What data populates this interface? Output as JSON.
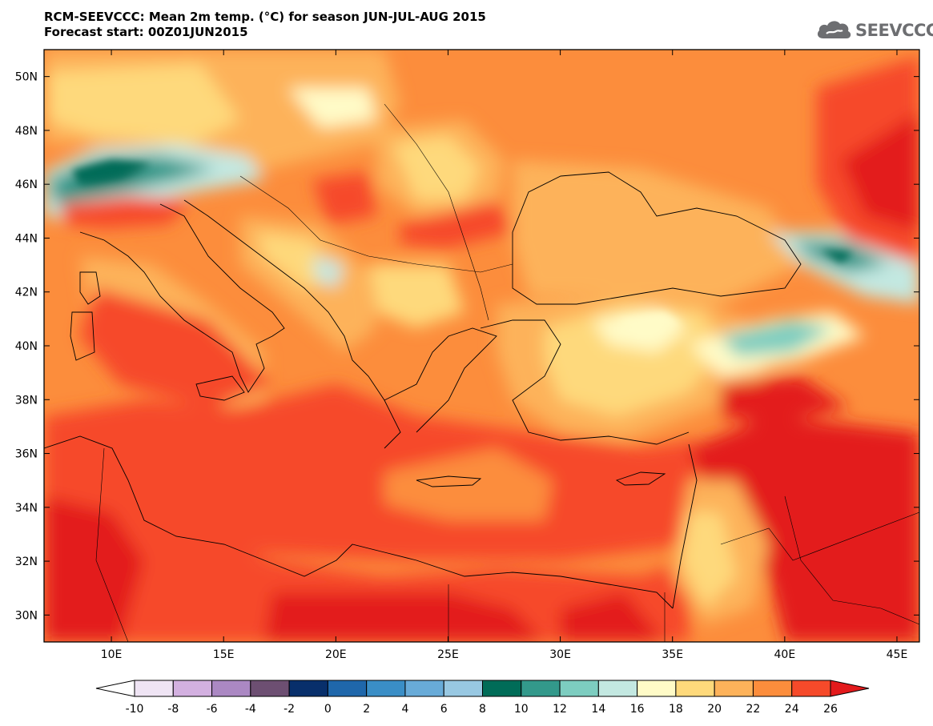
{
  "header": {
    "title_line1": "RCM-SEEVCCC: Mean 2m temp. (°C) for season JUN-JUL-AUG 2015",
    "title_line2": "Forecast start: 00Z01JUN2015"
  },
  "logo": {
    "text": "SEEVCCC",
    "icon": "cloud-icon"
  },
  "map": {
    "lon_range": [
      7,
      46
    ],
    "lat_range": [
      29,
      51
    ],
    "lon_ticks": [
      {
        "value": 10,
        "label": "10E"
      },
      {
        "value": 15,
        "label": "15E"
      },
      {
        "value": 20,
        "label": "20E"
      },
      {
        "value": 25,
        "label": "25E"
      },
      {
        "value": 30,
        "label": "30E"
      },
      {
        "value": 35,
        "label": "35E"
      },
      {
        "value": 40,
        "label": "40E"
      },
      {
        "value": 45,
        "label": "45E"
      }
    ],
    "lat_ticks": [
      {
        "value": 30,
        "label": "30N"
      },
      {
        "value": 32,
        "label": "32N"
      },
      {
        "value": 34,
        "label": "34N"
      },
      {
        "value": 36,
        "label": "36N"
      },
      {
        "value": 38,
        "label": "38N"
      },
      {
        "value": 40,
        "label": "40N"
      },
      {
        "value": 42,
        "label": "42N"
      },
      {
        "value": 44,
        "label": "44N"
      },
      {
        "value": 46,
        "label": "46N"
      },
      {
        "value": 48,
        "label": "48N"
      },
      {
        "value": 50,
        "label": "50N"
      }
    ]
  },
  "colorbar": {
    "labels": [
      "-10",
      "-8",
      "-6",
      "-4",
      "-2",
      "0",
      "2",
      "4",
      "6",
      "8",
      "10",
      "12",
      "14",
      "16",
      "18",
      "20",
      "22",
      "24",
      "26"
    ],
    "under_color": "#ffffff",
    "over_color": "#e31a1c",
    "colors": [
      "#efe4f4",
      "#d3b0e0",
      "#ab88c3",
      "#6d4f72",
      "#082f6b",
      "#1f67ab",
      "#3a8ec6",
      "#68abd8",
      "#98c8e2",
      "#006c58",
      "#33998b",
      "#7dcdc0",
      "#c3e8e1",
      "#fffbc7",
      "#fed97b",
      "#fdb25a",
      "#fc8d3c",
      "#f64a2a"
    ]
  }
}
